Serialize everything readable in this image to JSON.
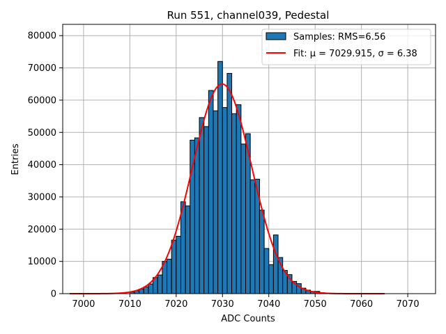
{
  "chart_data": {
    "type": "bar",
    "title": "Run 551, channel039, Pedestal",
    "xlabel": "ADC Counts",
    "ylabel": "Entries",
    "xlim": [
      6995.5,
      7076
    ],
    "ylim": [
      0,
      83500
    ],
    "xticks": [
      7000,
      7010,
      7020,
      7030,
      7040,
      7050,
      7060,
      7070
    ],
    "yticks": [
      0,
      10000,
      20000,
      30000,
      40000,
      50000,
      60000,
      70000,
      80000
    ],
    "grid": true,
    "legend_position": "top-right",
    "histogram": {
      "name": "Samples: RMS=6.56",
      "bin_width": 1,
      "bin_starts": [
        7010,
        7011,
        7012,
        7013,
        7014,
        7015,
        7016,
        7017,
        7018,
        7019,
        7020,
        7021,
        7022,
        7023,
        7024,
        7025,
        7026,
        7027,
        7028,
        7029,
        7030,
        7031,
        7032,
        7033,
        7034,
        7035,
        7036,
        7037,
        7038,
        7039,
        7040,
        7041,
        7042,
        7043,
        7044,
        7045,
        7046,
        7047,
        7048,
        7049,
        7050,
        7051,
        7052
      ],
      "values": [
        500,
        900,
        1400,
        2100,
        3000,
        5000,
        5800,
        10000,
        10700,
        16600,
        17800,
        28500,
        27200,
        47600,
        48300,
        54600,
        51800,
        63000,
        56700,
        72000,
        57700,
        68300,
        55800,
        58600,
        46400,
        49600,
        35300,
        35500,
        25900,
        14000,
        9000,
        18200,
        11200,
        7200,
        5900,
        3800,
        3100,
        1700,
        1100,
        700,
        700,
        300,
        100
      ]
    },
    "fit": {
      "name": "Fit: μ = 7029.915, σ = 6.38",
      "mu": 7029.915,
      "sigma": 6.38,
      "amplitude": 65000,
      "x_range": [
        6997,
        7065
      ]
    },
    "colors": {
      "bar_fill": "#1f77b4",
      "bar_edge": "#000000",
      "fit_line": "#ff0000",
      "grid": "#b0b0b0"
    }
  }
}
